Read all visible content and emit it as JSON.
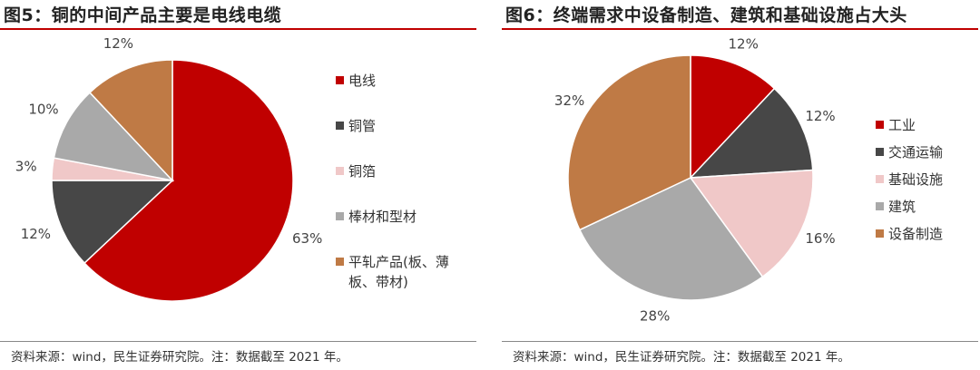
{
  "charts": [
    {
      "title": "图5：铜的中间产品主要是电线电缆",
      "source": "资料来源：wind，民生证券研究院。注：数据截至 2021 年。"
    },
    {
      "title": "图6：终端需求中设备制造、建筑和基础设施占大头",
      "source": "资料来源：wind，民生证券研究院。注：数据截至 2021 年。"
    }
  ],
  "chart_data": [
    {
      "type": "pie",
      "title": "图5：铜的中间产品主要是电线电缆",
      "categories": [
        "电线",
        "铜管",
        "铜箔",
        "棒材和型材",
        "平轧产品(板、薄板、带材)"
      ],
      "values": [
        63,
        12,
        3,
        10,
        12
      ],
      "value_labels": [
        "63%",
        "12%",
        "3%",
        "10%",
        "12%"
      ],
      "colors": [
        "#c00000",
        "#474747",
        "#f0c8c8",
        "#a9a9a9",
        "#bf7a45"
      ],
      "start": "12 o'clock",
      "direction": "clockwise",
      "legend_position": "right"
    },
    {
      "type": "pie",
      "title": "图6：终端需求中设备制造、建筑和基础设施占大头",
      "categories": [
        "工业",
        "交通运输",
        "基础设施",
        "建筑",
        "设备制造"
      ],
      "values": [
        12,
        12,
        16,
        28,
        32
      ],
      "value_labels": [
        "12%",
        "12%",
        "16%",
        "28%",
        "32%"
      ],
      "colors": [
        "#c00000",
        "#474747",
        "#f0c8c8",
        "#a9a9a9",
        "#bf7a45"
      ],
      "start": "12 o'clock",
      "direction": "clockwise",
      "legend_position": "right"
    }
  ]
}
